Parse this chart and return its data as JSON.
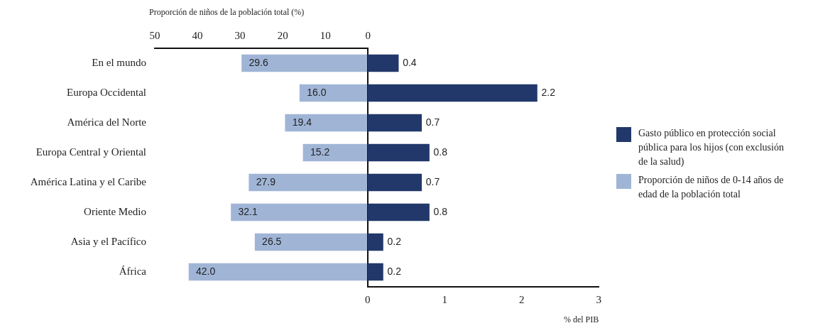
{
  "chart_data": [
    {
      "type": "bar",
      "orientation": "horizontal",
      "categories": [
        "En el mundo",
        "Europa Occidental",
        "América del Norte",
        "Europa Central y Oriental",
        "América Latina y el Caribe",
        "Oriente Medio",
        "Asia y el Pacífico",
        "África"
      ],
      "x2label": "Proporción de niños de la población total (%)",
      "x2lim": [
        50,
        0
      ],
      "x2ticks": [
        50,
        40,
        30,
        20,
        10,
        0
      ],
      "legend": "right",
      "series": [
        {
          "name": "Proporción de niños de 0-14 años de edad de la población total",
          "color": "#a0b5d6",
          "values": [
            29.6,
            16.0,
            19.4,
            15.2,
            27.9,
            32.1,
            26.5,
            42.0
          ],
          "value_labels": [
            "29.6",
            "16.0",
            "19.4",
            "15.2",
            "27.9",
            "32.1",
            "26.5",
            "42.0"
          ]
        }
      ]
    },
    {
      "type": "bar",
      "orientation": "horizontal",
      "categories": [
        null,
        null,
        null,
        null,
        null,
        null,
        null,
        null
      ],
      "tick_labels": "x",
      "xlabel": "% del PIB",
      "xlim": [
        0,
        3
      ],
      "xticks": [
        0,
        1,
        2,
        3
      ],
      "legend": "right",
      "series": [
        {
          "name": "Gasto público en protección social pública para los hijos (con exclusión de la salud)",
          "color": "#22386a",
          "values": [
            0.4,
            2.2,
            0.7,
            0.8,
            0.7,
            0.8,
            0.2,
            0.2
          ],
          "value_labels": [
            "0.4",
            "2.2",
            "0.7",
            "0.8",
            "0.7",
            "0.8",
            "0.2",
            "0.2"
          ]
        }
      ]
    }
  ]
}
